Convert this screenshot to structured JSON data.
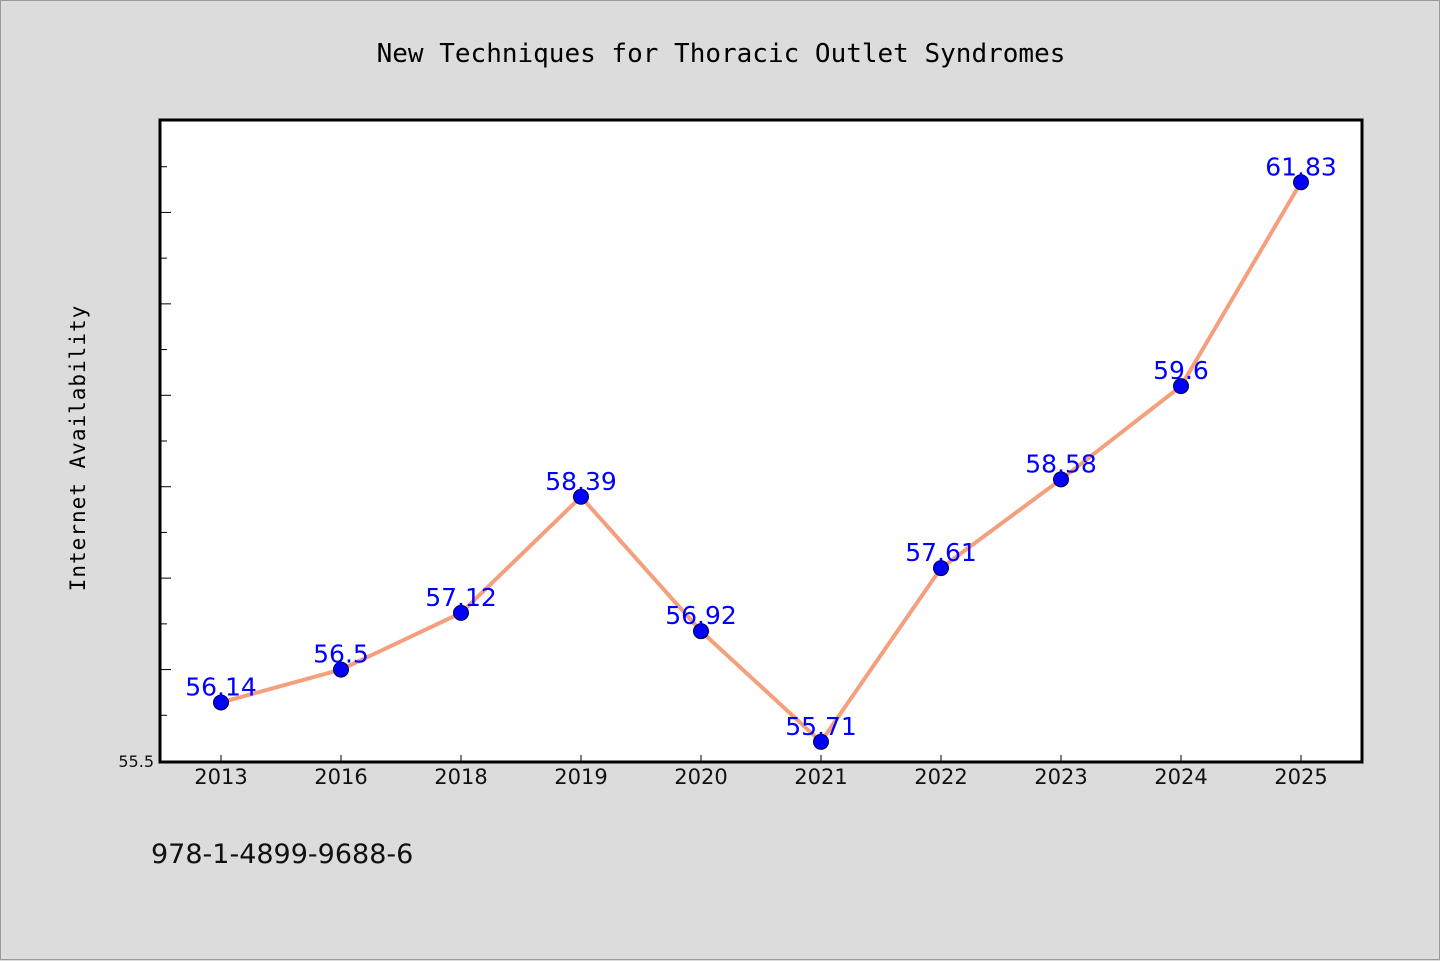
{
  "chart_data": {
    "type": "line",
    "title": "New Techniques for Thoracic Outlet Syndromes",
    "ylabel": "Internet Availability",
    "xlabel": "",
    "categories": [
      "2013",
      "2016",
      "2018",
      "2019",
      "2020",
      "2021",
      "2022",
      "2023",
      "2024",
      "2025"
    ],
    "values": [
      56.14,
      56.5,
      57.12,
      58.39,
      56.92,
      55.71,
      57.61,
      58.58,
      59.6,
      61.83
    ],
    "data_labels": [
      "56.14",
      "56.5",
      "57.12",
      "58.39",
      "56.92",
      "55.71",
      "57.61",
      "58.58",
      "59.6",
      "61.83"
    ],
    "y_tick_labels": [
      "55.5"
    ],
    "ylim": [
      55.5,
      62.5
    ],
    "grid": false,
    "legend": "none",
    "line_color": "#f4a07e",
    "marker_color": "#0000ff",
    "label_color": "#0000ff"
  },
  "footer_text": "978-1-4899-9688-6"
}
